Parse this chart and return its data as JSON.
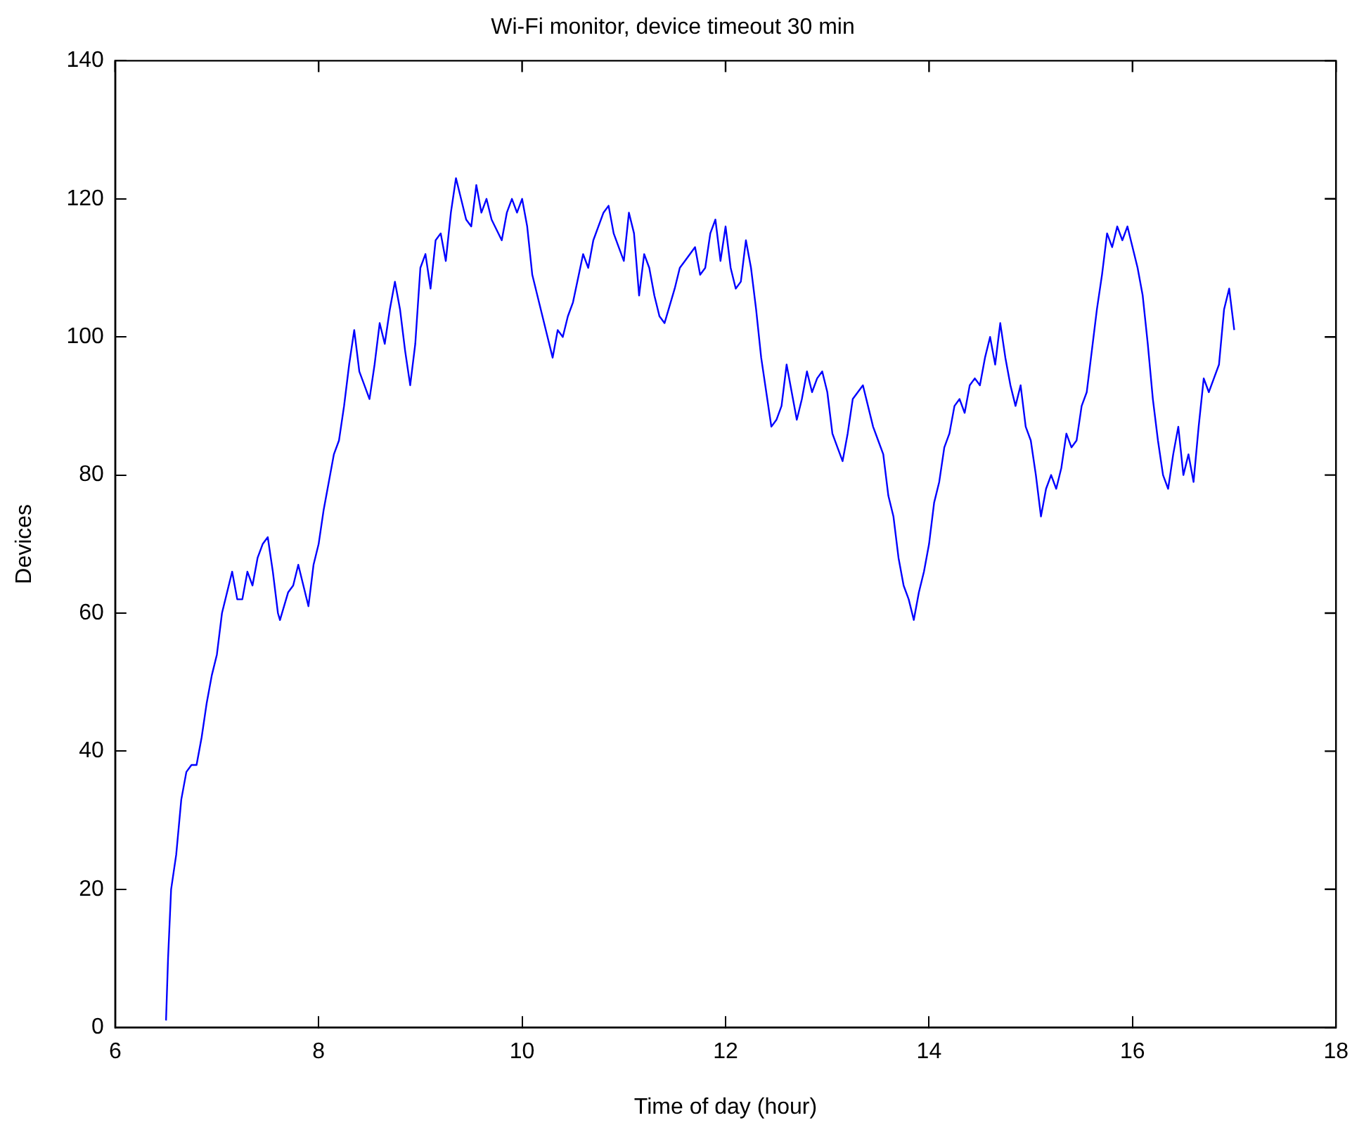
{
  "chart_data": {
    "type": "line",
    "title": "Wi-Fi monitor, device timeout 30 min",
    "xlabel": "Time of day (hour)",
    "ylabel": "Devices",
    "x": [
      6.5,
      6.52,
      6.55,
      6.6,
      6.65,
      6.7,
      6.75,
      6.8,
      6.85,
      6.9,
      6.95,
      7.0,
      7.05,
      7.1,
      7.15,
      7.2,
      7.25,
      7.3,
      7.35,
      7.4,
      7.45,
      7.5,
      7.55,
      7.6,
      7.62,
      7.7,
      7.75,
      7.8,
      7.85,
      7.9,
      7.95,
      8.0,
      8.05,
      8.1,
      8.15,
      8.2,
      8.25,
      8.3,
      8.35,
      8.4,
      8.45,
      8.5,
      8.55,
      8.6,
      8.65,
      8.7,
      8.75,
      8.8,
      8.85,
      8.9,
      8.95,
      9.0,
      9.05,
      9.1,
      9.15,
      9.2,
      9.25,
      9.3,
      9.35,
      9.4,
      9.45,
      9.5,
      9.55,
      9.6,
      9.65,
      9.7,
      9.8,
      9.85,
      9.9,
      9.95,
      10.0,
      10.05,
      10.1,
      10.15,
      10.2,
      10.25,
      10.3,
      10.35,
      10.4,
      10.45,
      10.5,
      10.6,
      10.65,
      10.7,
      10.8,
      10.85,
      10.9,
      10.95,
      11.0,
      11.05,
      11.1,
      11.15,
      11.2,
      11.25,
      11.3,
      11.35,
      11.4,
      11.5,
      11.55,
      11.6,
      11.7,
      11.75,
      11.8,
      11.85,
      11.9,
      11.95,
      12.0,
      12.05,
      12.1,
      12.15,
      12.2,
      12.25,
      12.3,
      12.35,
      12.4,
      12.45,
      12.5,
      12.55,
      12.6,
      12.65,
      12.7,
      12.75,
      12.8,
      12.85,
      12.9,
      12.95,
      13.0,
      13.05,
      13.1,
      13.15,
      13.2,
      13.25,
      13.3,
      13.35,
      13.4,
      13.45,
      13.5,
      13.55,
      13.6,
      13.65,
      13.7,
      13.75,
      13.8,
      13.85,
      13.9,
      13.95,
      14.0,
      14.05,
      14.1,
      14.15,
      14.2,
      14.25,
      14.3,
      14.35,
      14.4,
      14.45,
      14.5,
      14.55,
      14.6,
      14.65,
      14.7,
      14.75,
      14.8,
      14.85,
      14.9,
      14.95,
      15.0,
      15.05,
      15.1,
      15.15,
      15.2,
      15.25,
      15.3,
      15.35,
      15.4,
      15.45,
      15.5,
      15.55,
      15.6,
      15.65,
      15.7,
      15.75,
      15.8,
      15.85,
      15.9,
      15.95,
      16.0,
      16.05,
      16.1,
      16.15,
      16.2,
      16.25,
      16.3,
      16.35,
      16.4,
      16.45,
      16.5,
      16.55,
      16.6,
      16.65,
      16.7,
      16.75,
      16.8,
      16.85,
      16.9,
      16.95,
      17.0
    ],
    "series": [
      {
        "color": "#0000ff",
        "values": [
          1,
          10,
          20,
          25,
          33,
          37,
          38,
          38,
          42,
          47,
          51,
          54,
          60,
          63,
          66,
          62,
          62,
          66,
          64,
          68,
          70,
          71,
          66,
          60,
          59,
          63,
          64,
          67,
          64,
          61,
          67,
          70,
          75,
          79,
          83,
          85,
          90,
          96,
          101,
          95,
          93,
          91,
          96,
          102,
          99,
          104,
          108,
          104,
          98,
          93,
          99,
          110,
          112,
          107,
          114,
          115,
          111,
          118,
          123,
          120,
          117,
          116,
          122,
          118,
          120,
          117,
          114,
          118,
          120,
          118,
          120,
          116,
          109,
          106,
          103,
          100,
          97,
          101,
          100,
          103,
          105,
          112,
          110,
          114,
          118,
          119,
          115,
          113,
          111,
          118,
          115,
          106,
          112,
          110,
          106,
          103,
          102,
          107,
          110,
          111,
          113,
          109,
          110,
          115,
          117,
          111,
          116,
          110,
          107,
          108,
          114,
          110,
          104,
          97,
          92,
          87,
          88,
          90,
          96,
          92,
          88,
          91,
          95,
          92,
          94,
          95,
          92,
          86,
          84,
          82,
          86,
          91,
          92,
          93,
          90,
          87,
          85,
          83,
          77,
          74,
          68,
          64,
          62,
          59,
          63,
          66,
          70,
          76,
          79,
          84,
          86,
          90,
          91,
          89,
          93,
          94,
          93,
          97,
          100,
          96,
          102,
          97,
          93,
          90,
          93,
          87,
          85,
          80,
          74,
          78,
          80,
          78,
          81,
          86,
          84,
          85,
          90,
          92,
          98,
          104,
          109,
          115,
          113,
          116,
          114,
          116,
          113,
          110,
          106,
          99,
          91,
          85,
          80,
          78,
          83,
          87,
          80,
          83,
          79,
          87,
          94,
          92,
          94,
          96,
          104,
          107,
          101
        ]
      }
    ],
    "xlim": [
      6,
      18
    ],
    "xticks": [
      6,
      8,
      10,
      12,
      14,
      16,
      18
    ],
    "ylim": [
      0,
      140
    ],
    "yticks": [
      0,
      20,
      40,
      60,
      80,
      100,
      120,
      140
    ],
    "grid": false,
    "legend": false,
    "marker": "none",
    "line_style": "solid"
  }
}
